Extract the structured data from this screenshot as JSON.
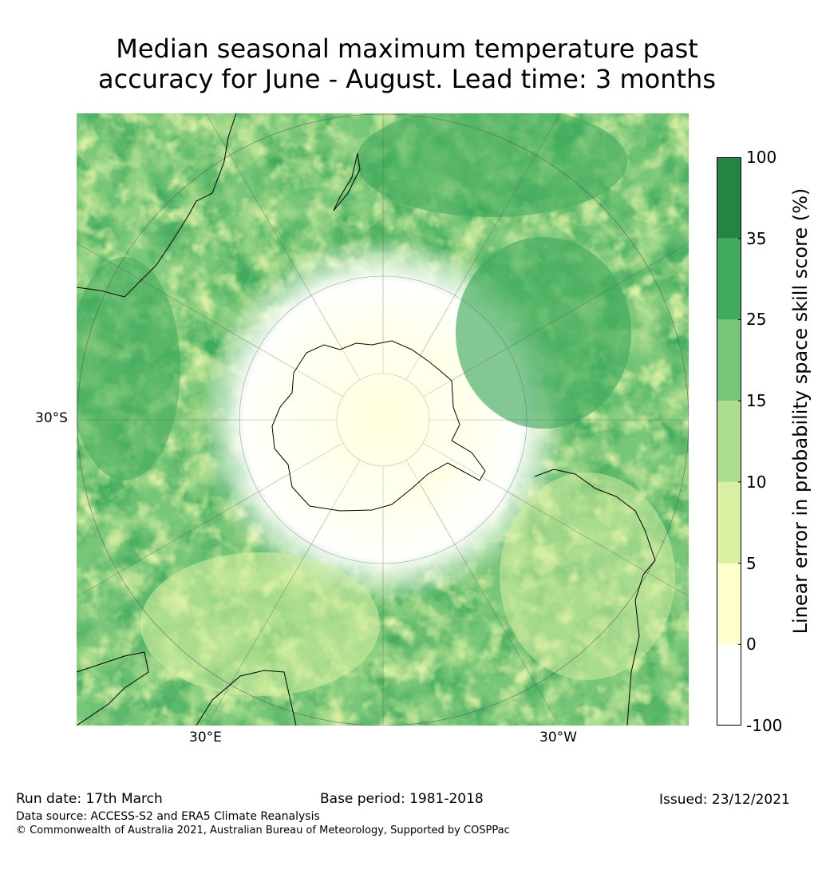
{
  "title": {
    "line1": "Median seasonal maximum temperature past",
    "line2": "accuracy for June - August. Lead time: 3 months"
  },
  "map": {
    "projection": "south-polar-stereographic",
    "lat_label": "30°S",
    "lon_labels": [
      "30°E",
      "30°W"
    ]
  },
  "colorbar": {
    "label": "Linear error in probability space skill score (%)",
    "levels": [
      "-100",
      "0",
      "5",
      "10",
      "15",
      "25",
      "35",
      "100"
    ],
    "colors": [
      "#ffffff",
      "#ffffcc",
      "#d9f0a3",
      "#addd8e",
      "#78c679",
      "#41ab5d",
      "#238443"
    ]
  },
  "footer": {
    "run_date": "Run date: 17th March",
    "base_period": "Base period: 1981-2018",
    "issued": "Issued: 23/12/2021",
    "data_source": "Data source: ACCESS-S2 and ERA5 Climate Reanalysis",
    "copyright": "© Commonwealth of Australia 2021, Australian Bureau of Meteorology, Supported by COSPPac"
  }
}
